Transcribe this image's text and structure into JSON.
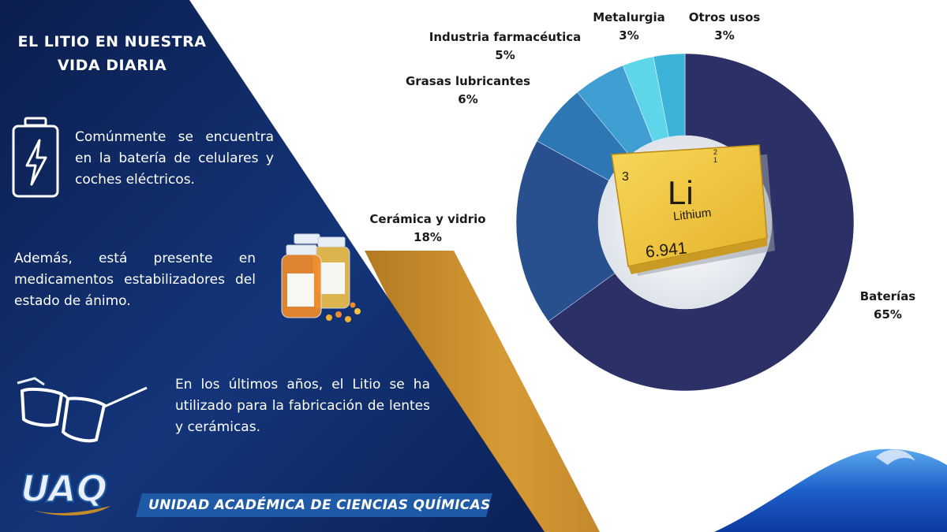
{
  "panel": {
    "title_line1": "EL LITIO EN NUESTRA",
    "title_line2": "VIDA DIARIA",
    "items": [
      {
        "icon": "battery-bolt-icon",
        "text": "Comúnmente se encuentra en la batería de celulares y coches eléctricos."
      },
      {
        "icon": "pill-bottles-icon",
        "text": "Además, está presente en medicamentos estabilizadores del estado de ánimo."
      },
      {
        "icon": "eyeglasses-icon",
        "text": "En los últimos años, el Litio se ha utilizado para la fabricación de lentes y cerámicas."
      }
    ]
  },
  "element_tile": {
    "atomic_number": "3",
    "symbol": "Li",
    "name": "Lithium",
    "mass": "6.941",
    "shells": "2\n1",
    "color": "#f2c53a"
  },
  "chart_data": {
    "type": "pie",
    "donut": true,
    "title": "",
    "series": [
      {
        "label": "Baterías",
        "value": 65,
        "display": "65%",
        "color": "#2b3167"
      },
      {
        "label": "Cerámica y vidrio",
        "value": 18,
        "display": "18%",
        "color": "#284f8e"
      },
      {
        "label": "Grasas lubricantes",
        "value": 6,
        "display": "6%",
        "color": "#2d77b5"
      },
      {
        "label": "Industria farmacéutica",
        "value": 5,
        "display": "5%",
        "color": "#3f9fd2"
      },
      {
        "label": "Metalurgia",
        "value": 3,
        "display": "3%",
        "color": "#5fd5ea"
      },
      {
        "label": "Otros usos",
        "value": 3,
        "display": "3%",
        "color": "#3db3da"
      }
    ]
  },
  "footer": {
    "logo_text": "UAQ",
    "banner_text": "UNIDAD ACADÉMICA DE CIENCIAS QUÍMICAS"
  },
  "colors": {
    "panel_dark": "#0b1f50",
    "panel_mid": "#183f82",
    "ribbon_gold": "#c58a2a",
    "footer_bar": "#1f5aa6"
  }
}
